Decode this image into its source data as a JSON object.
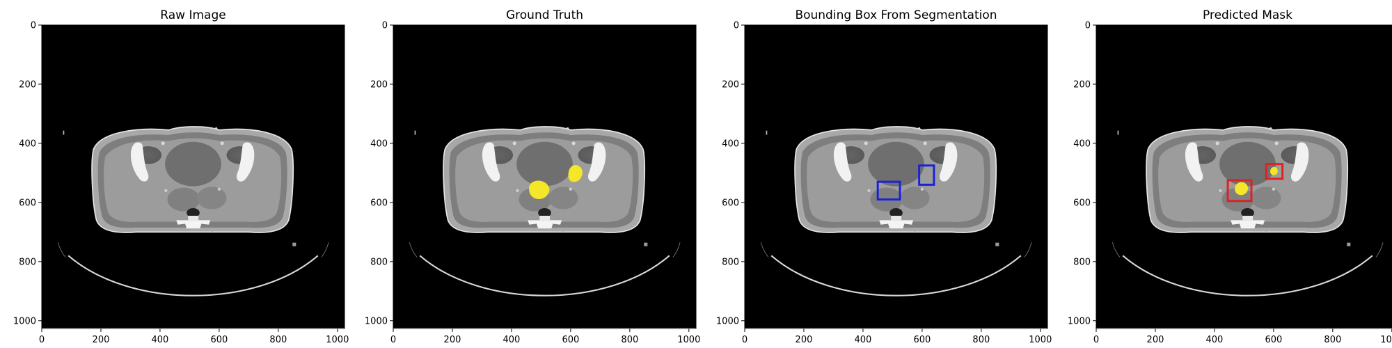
{
  "panels": [
    {
      "title": "Raw Image",
      "overlay": "none",
      "x_ticks": [
        "0",
        "200",
        "400",
        "600",
        "800",
        "1000"
      ],
      "y_ticks": [
        "0",
        "200",
        "400",
        "600",
        "800",
        "1000"
      ]
    },
    {
      "title": "Ground Truth",
      "overlay": "mask",
      "x_ticks": [
        "0",
        "200",
        "400",
        "600",
        "800",
        "1000"
      ],
      "y_ticks": [
        "0",
        "200",
        "400",
        "600",
        "800",
        "1000"
      ]
    },
    {
      "title": "Bounding Box From Segmentation",
      "overlay": "boxes",
      "x_ticks": [
        "0",
        "200",
        "400",
        "600",
        "800",
        "1000"
      ],
      "y_ticks": [
        "0",
        "200",
        "400",
        "600",
        "800",
        "1000"
      ]
    },
    {
      "title": "Predicted Mask",
      "overlay": "mask+boxes",
      "x_ticks": [
        "0",
        "200",
        "400",
        "600",
        "800",
        "1000"
      ],
      "y_ticks": [
        "0",
        "200",
        "400",
        "600",
        "800",
        "1000"
      ]
    }
  ],
  "image_extent": [
    0,
    1024
  ],
  "tick_values": [
    0,
    200,
    400,
    600,
    800,
    1000
  ],
  "colors": {
    "mask": "#f5e62a",
    "gt_box": "#1a22d8",
    "pred_box": "#dd2222",
    "background": "#000000"
  },
  "gt_boxes": [
    {
      "x0": 450,
      "y0": 530,
      "x1": 525,
      "y1": 590
    },
    {
      "x0": 590,
      "y0": 475,
      "x1": 640,
      "y1": 540
    }
  ],
  "pred_boxes": [
    {
      "x0": 445,
      "y0": 525,
      "x1": 525,
      "y1": 595
    },
    {
      "x0": 575,
      "y0": 470,
      "x1": 630,
      "y1": 520
    }
  ]
}
